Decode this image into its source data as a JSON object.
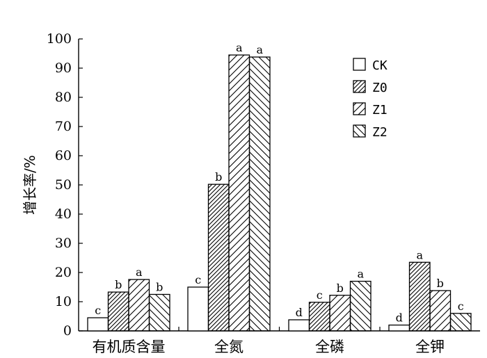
{
  "chart_data": {
    "type": "bar",
    "title": "",
    "xlabel": "",
    "ylabel": "增长率/%",
    "ylim": [
      0,
      100
    ],
    "yticks": [
      0,
      10,
      20,
      30,
      40,
      50,
      60,
      70,
      80,
      90,
      100
    ],
    "grid": false,
    "legend_position": "top-right",
    "categories": [
      "有机质含量",
      "全氮",
      "全磷",
      "全钾"
    ],
    "series": [
      {
        "name": "CK",
        "pattern": "none",
        "values": [
          4.5,
          15.0,
          3.8,
          2.0
        ],
        "labels": [
          "c",
          "c",
          "d",
          "d"
        ]
      },
      {
        "name": "Z0",
        "pattern": "dense-diagonal",
        "values": [
          13.3,
          50.2,
          9.8,
          23.5
        ],
        "labels": [
          "b",
          "b",
          "c",
          "a"
        ]
      },
      {
        "name": "Z1",
        "pattern": "diagonal",
        "values": [
          17.6,
          94.5,
          12.2,
          13.8
        ],
        "labels": [
          "a",
          "a",
          "b",
          "b"
        ]
      },
      {
        "name": "Z2",
        "pattern": "back-diagonal",
        "values": [
          12.5,
          93.8,
          17.0,
          6.0
        ],
        "labels": [
          "b",
          "a",
          "a",
          "c"
        ]
      }
    ],
    "colors": {
      "axis": "#000000",
      "fill": "#ffffff",
      "hatch": "#000000"
    }
  }
}
